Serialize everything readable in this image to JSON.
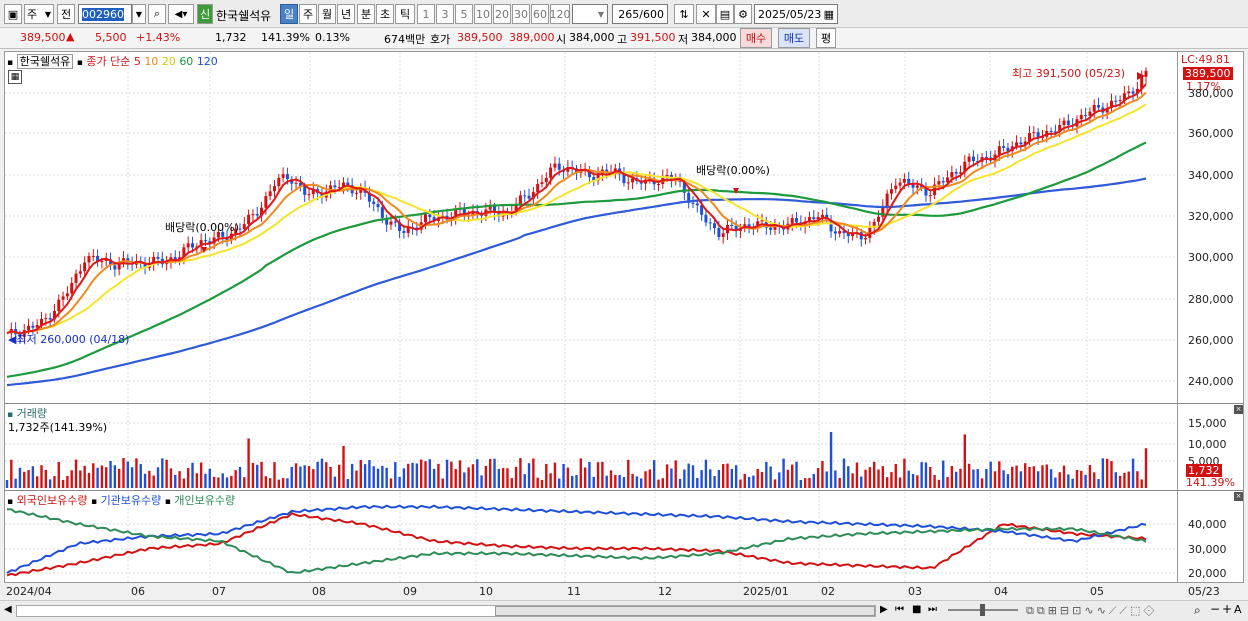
{
  "toolbar": {
    "period_main": "주",
    "period_prev": "전",
    "code": "002960",
    "badge_new": "신",
    "stock_name": "한국쉘석유",
    "periods": [
      "일",
      "주",
      "월",
      "년",
      "분",
      "초",
      "틱"
    ],
    "intervals": [
      "1",
      "3",
      "5",
      "10",
      "20",
      "30",
      "60",
      "120"
    ],
    "count": "265",
    "count_total": "/600",
    "date": "2025/05/23"
  },
  "quote": {
    "price": "389,500",
    "arrow": "▲",
    "change": "5,500",
    "change_pct": "+1.43%",
    "volume": "1,732",
    "volume_ratio": "141.39%",
    "turnover": "0.13%",
    "amount": "674백만",
    "hoga_label": "호가",
    "ask": "389,500",
    "bid": "389,000",
    "open_label": "시",
    "open": "384,000",
    "high_label": "고",
    "high": "391,500",
    "low_label": "저",
    "low": "384,000",
    "buy": "매수",
    "sell": "매도",
    "avg": "평"
  },
  "price_panel": {
    "name": "한국쉘석유",
    "legend_label": "종가 단순",
    "ma": [
      {
        "period": "5",
        "color": "#e01818"
      },
      {
        "period": "10",
        "color": "#f08a1c"
      },
      {
        "period": "20",
        "color": "#f0e21c"
      },
      {
        "period": "60",
        "color": "#1e9a3c"
      },
      {
        "period": "120",
        "color": "#1f4fd8"
      }
    ],
    "lc": "LC:49.81",
    "last_price": "389,500",
    "last_pct": "1.17%",
    "high_annot": "최고 391,500 (05/23)",
    "low_annot": "최저 260,000 (04/18)",
    "div1": "배당락(0.00%)",
    "div2": "배당락(0.00%)",
    "y_ticks": [
      "380,000",
      "360,000",
      "340,000",
      "320,000",
      "300,000",
      "280,000",
      "260,000",
      "240,000"
    ]
  },
  "volume_panel": {
    "title": "거래량",
    "value": "1,732주(141.39%)",
    "y_ticks": [
      "15,000",
      "10,000",
      "5,000"
    ],
    "last_vol": "1,732",
    "last_pct": "141.39%"
  },
  "holding_panel": {
    "series": [
      {
        "name": "외국인보유수량",
        "color": "#d21212"
      },
      {
        "name": "기관보유수량",
        "color": "#1f4fd8"
      },
      {
        "name": "개인보유수량",
        "color": "#2e8b57"
      }
    ],
    "y_ticks": [
      "40,000",
      "30,000",
      "20,000"
    ]
  },
  "x_labels": [
    "2024/04",
    "06",
    "07",
    "08",
    "09",
    "10",
    "11",
    "12",
    "2025/01",
    "02",
    "03",
    "04",
    "05",
    "05/23"
  ]
}
